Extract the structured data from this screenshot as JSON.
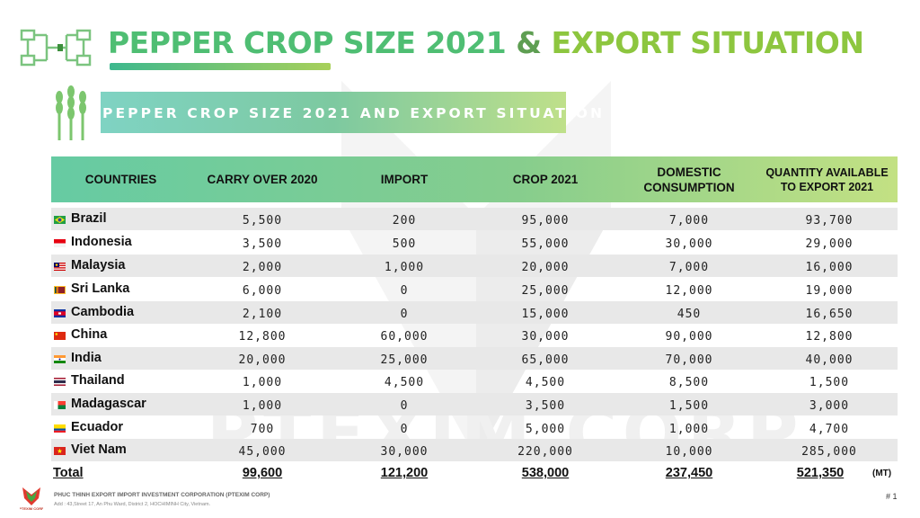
{
  "title": {
    "part1": "PEPPER CROP SIZE 2021",
    "amp": "&",
    "part2": "EXPORT SITUATION"
  },
  "subtitle": "PEPPER CROP SIZE 2021 AND EXPORT SITUATION",
  "watermark": "PTEXIM CORP",
  "headers": [
    "COUNTRIES",
    "CARRY OVER 2020",
    "IMPORT",
    "CROP 2021",
    "DOMESTIC CONSUMPTION",
    "QUANTITY AVAILABLE TO EXPORT 2021"
  ],
  "rows": [
    {
      "country": "Brazil",
      "flag": "brazil-flag",
      "carry_over": "5,500",
      "import": "200",
      "crop": "95,000",
      "domestic": "7,000",
      "export": "93,700"
    },
    {
      "country": "Indonesia",
      "flag": "indonesia-flag",
      "carry_over": "3,500",
      "import": "500",
      "crop": "55,000",
      "domestic": "30,000",
      "export": "29,000"
    },
    {
      "country": "Malaysia",
      "flag": "malaysia-flag",
      "carry_over": "2,000",
      "import": "1,000",
      "crop": "20,000",
      "domestic": "7,000",
      "export": "16,000"
    },
    {
      "country": "Sri Lanka",
      "flag": "sri-lanka-flag",
      "carry_over": "6,000",
      "import": "0",
      "crop": "25,000",
      "domestic": "12,000",
      "export": "19,000"
    },
    {
      "country": "Cambodia",
      "flag": "cambodia-flag",
      "carry_over": "2,100",
      "import": "0",
      "crop": "15,000",
      "domestic": "450",
      "export": "16,650"
    },
    {
      "country": "China",
      "flag": "china-flag",
      "carry_over": "12,800",
      "import": "60,000",
      "crop": "30,000",
      "domestic": "90,000",
      "export": "12,800"
    },
    {
      "country": "India",
      "flag": "india-flag",
      "carry_over": "20,000",
      "import": "25,000",
      "crop": "65,000",
      "domestic": "70,000",
      "export": "40,000"
    },
    {
      "country": "Thailand",
      "flag": "thailand-flag",
      "carry_over": "1,000",
      "import": "4,500",
      "crop": "4,500",
      "domestic": "8,500",
      "export": "1,500"
    },
    {
      "country": "Madagascar",
      "flag": "madagascar-flag",
      "carry_over": "1,000",
      "import": "0",
      "crop": "3,500",
      "domestic": "1,500",
      "export": "3,000"
    },
    {
      "country": "Ecuador",
      "flag": "ecuador-flag",
      "carry_over": "700",
      "import": "0",
      "crop": "5,000",
      "domestic": "1,000",
      "export": "4,700"
    },
    {
      "country": "Viet Nam",
      "flag": "vietnam-flag",
      "carry_over": "45,000",
      "import": "30,000",
      "crop": "220,000",
      "domestic": "10,000",
      "export": "285,000"
    }
  ],
  "total": {
    "label": "Total",
    "carry_over": "99,600",
    "import": "121,200",
    "crop": "538,000",
    "domestic": "237,450",
    "export": "521,350",
    "unit": "(MT)"
  },
  "footer": {
    "company": "PHUC THINH EXPORT IMPORT INVESTMENT CORPORATION (PTEXIM CORP)",
    "address": "Add : 43,Street 17, An Phu Ward, District 2, HOCHIMINH City, Vietnam.",
    "page": "# 1"
  },
  "colors": {
    "title_green": "#4fbe73",
    "title_lime": "#8dc63f",
    "alt_row": "#e8e8e8"
  }
}
